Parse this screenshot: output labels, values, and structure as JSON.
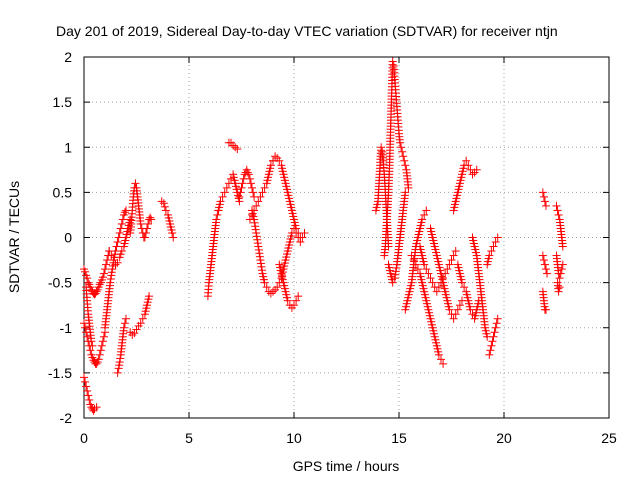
{
  "chart_data": {
    "type": "scatter",
    "title": "Day 201 of 2019, Sidereal Day-to-day VTEC variation (SDTVAR) for receiver ntjn",
    "xlabel": "GPS time / hours",
    "ylabel": "SDTVAR / TECUs",
    "xlim": [
      0,
      25
    ],
    "ylim": [
      -2,
      2
    ],
    "xticks": [
      0,
      5,
      10,
      15,
      20,
      25
    ],
    "xtick_labels": [
      "0",
      "5",
      "10",
      "15",
      "20",
      "25"
    ],
    "yticks": [
      -2,
      -1.5,
      -1,
      -0.5,
      0,
      0.5,
      1,
      1.5,
      2
    ],
    "ytick_labels": [
      "-2",
      "-1.5",
      "-1",
      "-0.5",
      "0",
      "0.5",
      "1",
      "1.5",
      "2"
    ],
    "grid": true,
    "marker": "+",
    "color": "#ff0000",
    "segments": [
      {
        "x": [
          0.0,
          0.05,
          0.1,
          0.15,
          0.2,
          0.25,
          0.3,
          0.35,
          0.4,
          0.45,
          0.5,
          0.6
        ],
        "y": [
          -1.55,
          -1.6,
          -1.65,
          -1.7,
          -1.75,
          -1.8,
          -1.85,
          -1.88,
          -1.9,
          -1.92,
          -1.9,
          -1.88
        ]
      },
      {
        "x": [
          0.0,
          0.05,
          0.1,
          0.15,
          0.2,
          0.25,
          0.3,
          0.35,
          0.4,
          0.45,
          0.5,
          0.55,
          0.6,
          0.65,
          0.7,
          0.75,
          0.8,
          0.85,
          0.9,
          0.95,
          1.0
        ],
        "y": [
          -0.95,
          -1.0,
          -1.05,
          -1.1,
          -1.15,
          -1.2,
          -1.25,
          -1.3,
          -1.33,
          -1.36,
          -1.38,
          -1.4,
          -1.4,
          -1.38,
          -1.35,
          -1.3,
          -1.25,
          -1.2,
          -1.15,
          -1.1,
          -1.05
        ]
      },
      {
        "x": [
          1.0,
          1.05,
          1.1,
          1.15,
          1.2,
          1.25,
          1.3,
          1.35,
          1.4,
          1.45,
          1.5,
          1.55,
          1.6,
          1.65,
          1.7,
          1.75,
          1.8,
          1.85,
          1.9,
          1.95,
          2.0
        ],
        "y": [
          -1.0,
          -0.9,
          -0.8,
          -0.7,
          -0.6,
          -0.5,
          -0.42,
          -0.35,
          -0.28,
          -0.22,
          -0.15,
          -0.1,
          -0.05,
          0.0,
          0.05,
          0.1,
          0.15,
          0.2,
          0.25,
          0.28,
          0.3
        ]
      },
      {
        "x": [
          0.0,
          0.05,
          0.1,
          0.15,
          0.2,
          0.25,
          0.3,
          0.35,
          0.4,
          0.45,
          0.5,
          0.55,
          0.6,
          0.65,
          0.7,
          0.75,
          0.8,
          0.85,
          0.9,
          0.95,
          1.0,
          1.05,
          1.1,
          1.15,
          1.2
        ],
        "y": [
          -0.35,
          -0.38,
          -0.42,
          -0.45,
          -0.5,
          -0.52,
          -0.55,
          -0.58,
          -0.6,
          -0.62,
          -0.63,
          -0.62,
          -0.6,
          -0.58,
          -0.55,
          -0.52,
          -0.5,
          -0.47,
          -0.44,
          -0.4,
          -0.35,
          -0.3,
          -0.25,
          -0.2,
          -0.15
        ]
      },
      {
        "x": [
          1.2,
          1.3,
          1.4,
          1.5,
          1.6,
          1.7,
          1.8,
          1.9,
          2.0,
          2.1,
          2.2
        ],
        "y": [
          -0.15,
          -0.2,
          -0.25,
          -0.3,
          -0.28,
          -0.22,
          -0.15,
          -0.1,
          0.0,
          0.1,
          0.2
        ]
      },
      {
        "x": [
          0.1,
          0.15,
          0.2,
          0.25,
          0.3,
          0.35,
          0.4
        ],
        "y": [
          -0.55,
          -0.7,
          -0.85,
          -0.95,
          -1.05,
          -1.15,
          -1.2
        ]
      },
      {
        "x": [
          1.6,
          1.65,
          1.7,
          1.75,
          1.8,
          1.85,
          1.9,
          1.95,
          2.0
        ],
        "y": [
          -1.5,
          -1.45,
          -1.38,
          -1.3,
          -1.2,
          -1.1,
          -1.0,
          -0.95,
          -0.9
        ]
      },
      {
        "x": [
          2.2,
          2.3,
          2.4,
          2.5,
          2.6,
          2.7,
          2.8,
          2.9,
          3.0,
          3.1
        ],
        "y": [
          -1.05,
          -1.08,
          -1.06,
          -1.02,
          -0.98,
          -0.95,
          -0.9,
          -0.85,
          -0.75,
          -0.65
        ]
      },
      {
        "x": [
          2.2,
          2.25,
          2.3,
          2.35,
          2.4,
          2.45,
          2.5,
          2.55,
          2.6,
          2.65,
          2.7,
          2.75,
          2.8,
          2.85,
          2.9,
          2.95,
          3.0,
          3.05,
          3.1,
          3.15,
          3.2
        ],
        "y": [
          0.05,
          0.15,
          0.3,
          0.45,
          0.55,
          0.6,
          0.55,
          0.45,
          0.35,
          0.25,
          0.15,
          0.1,
          0.05,
          0.0,
          0.0,
          0.05,
          0.1,
          0.15,
          0.2,
          0.22,
          0.2
        ]
      },
      {
        "x": [
          3.7,
          3.8,
          3.9,
          4.0,
          4.1,
          4.2,
          4.25
        ],
        "y": [
          0.4,
          0.38,
          0.3,
          0.25,
          0.15,
          0.05,
          0.0
        ]
      },
      {
        "x": [
          5.9,
          5.95,
          6.0,
          6.05,
          6.1,
          6.15,
          6.2,
          6.25,
          6.3,
          6.35,
          6.4
        ],
        "y": [
          -0.65,
          -0.5,
          -0.4,
          -0.3,
          -0.2,
          -0.1,
          0.0,
          0.1,
          0.2,
          0.25,
          0.3
        ]
      },
      {
        "x": [
          6.4,
          6.5,
          6.6,
          6.7,
          6.8,
          6.9,
          7.0,
          7.1,
          7.2,
          7.3,
          7.4
        ],
        "y": [
          0.3,
          0.4,
          0.45,
          0.5,
          0.55,
          0.6,
          0.65,
          0.7,
          0.6,
          0.5,
          0.4
        ]
      },
      {
        "x": [
          6.9,
          7.0,
          7.1,
          7.2,
          7.3
        ],
        "y": [
          1.05,
          1.05,
          1.02,
          1.0,
          0.98
        ]
      },
      {
        "x": [
          7.4,
          7.45,
          7.5,
          7.55,
          7.6,
          7.65,
          7.7,
          7.75,
          7.8,
          7.85,
          7.9,
          7.95,
          8.0,
          8.05,
          8.1
        ],
        "y": [
          0.45,
          0.5,
          0.55,
          0.6,
          0.65,
          0.7,
          0.72,
          0.75,
          0.72,
          0.7,
          0.65,
          0.6,
          0.55,
          0.5,
          0.45
        ]
      },
      {
        "x": [
          7.9,
          8.0,
          8.1,
          8.2,
          8.3,
          8.4,
          8.5,
          8.6,
          8.7,
          8.8,
          8.9,
          9.0
        ],
        "y": [
          0.2,
          0.25,
          0.3,
          0.35,
          0.4,
          0.45,
          0.5,
          0.55,
          0.6,
          0.7,
          0.8,
          0.85
        ]
      },
      {
        "x": [
          8.0,
          8.1,
          8.2,
          8.3,
          8.4,
          8.5,
          8.6,
          8.7,
          8.8,
          8.9,
          9.0,
          9.1,
          9.2,
          9.3,
          9.4,
          9.5,
          9.6,
          9.7,
          9.8,
          9.9,
          10.0,
          10.1,
          10.2,
          10.3,
          10.4,
          10.5
        ],
        "y": [
          0.3,
          0.2,
          0.05,
          -0.1,
          -0.25,
          -0.4,
          -0.5,
          -0.55,
          -0.6,
          -0.62,
          -0.6,
          -0.58,
          -0.55,
          -0.5,
          -0.45,
          -0.35,
          -0.25,
          -0.15,
          -0.05,
          0.05,
          0.1,
          0.05,
          0.0,
          -0.05,
          0.0,
          0.05
        ]
      },
      {
        "x": [
          9.0,
          9.1,
          9.2,
          9.3,
          9.4,
          9.5,
          9.6,
          9.7,
          9.8,
          9.9,
          10.0,
          10.1,
          10.2,
          10.3
        ],
        "y": [
          0.85,
          0.9,
          0.88,
          0.85,
          0.8,
          0.7,
          0.6,
          0.5,
          0.4,
          0.3,
          0.2,
          0.1,
          0.05,
          0.0
        ]
      },
      {
        "x": [
          9.3,
          9.4,
          9.5,
          9.6,
          9.7,
          9.8,
          9.9,
          10.0,
          10.1,
          10.2
        ],
        "y": [
          -0.3,
          -0.4,
          -0.5,
          -0.6,
          -0.7,
          -0.75,
          -0.78,
          -0.75,
          -0.7,
          -0.65
        ]
      },
      {
        "x": [
          13.9,
          14.0,
          14.05,
          14.1,
          14.15,
          14.2,
          14.25,
          14.3,
          14.35,
          14.4,
          14.45,
          14.5
        ],
        "y": [
          0.3,
          0.4,
          0.6,
          0.8,
          1.0,
          0.95,
          0.85,
          0.7,
          0.5,
          0.3,
          0.1,
          -0.1
        ]
      },
      {
        "x": [
          14.3,
          14.35,
          14.4,
          14.45,
          14.5,
          14.55,
          14.6,
          14.65,
          14.7,
          14.75,
          14.8,
          14.85,
          14.9,
          14.95,
          15.0,
          15.05,
          15.1,
          15.15,
          15.2,
          15.25,
          15.3,
          15.35,
          15.4,
          15.45
        ],
        "y": [
          -0.2,
          -0.1,
          0.1,
          0.3,
          0.5,
          0.8,
          1.2,
          1.6,
          1.95,
          1.9,
          1.75,
          1.6,
          1.45,
          1.3,
          1.15,
          1.05,
          1.0,
          0.95,
          0.9,
          0.85,
          0.8,
          0.75,
          0.65,
          0.55
        ]
      },
      {
        "x": [
          14.5,
          14.6,
          14.7,
          14.8,
          14.9,
          15.0,
          15.1,
          15.2,
          15.3
        ],
        "y": [
          -0.3,
          -0.4,
          -0.5,
          -0.45,
          -0.3,
          -0.1,
          0.1,
          0.3,
          0.5
        ]
      },
      {
        "x": [
          15.3,
          15.4,
          15.5,
          15.6,
          15.7,
          15.8,
          15.9,
          16.0,
          16.1,
          16.2,
          16.3
        ],
        "y": [
          -0.8,
          -0.7,
          -0.6,
          -0.5,
          -0.3,
          -0.1,
          0.0,
          0.1,
          0.2,
          0.25,
          0.3
        ]
      },
      {
        "x": [
          15.6,
          15.7,
          15.8,
          15.9,
          16.0,
          16.1,
          16.2,
          16.3,
          16.4,
          16.5,
          16.6,
          16.7,
          16.8,
          16.9,
          17.0,
          17.1
        ],
        "y": [
          -0.2,
          -0.25,
          -0.3,
          -0.35,
          -0.4,
          -0.5,
          -0.6,
          -0.7,
          -0.8,
          -0.9,
          -1.0,
          -1.1,
          -1.2,
          -1.3,
          -1.35,
          -1.4
        ]
      },
      {
        "x": [
          16.0,
          16.1,
          16.2,
          16.3,
          16.4,
          16.5,
          16.6,
          16.7,
          16.8,
          16.9,
          17.0,
          17.1,
          17.2,
          17.3,
          17.4,
          17.5,
          17.6,
          17.7
        ],
        "y": [
          -0.1,
          -0.2,
          -0.3,
          -0.35,
          -0.4,
          -0.45,
          -0.5,
          -0.55,
          -0.6,
          -0.55,
          -0.5,
          -0.45,
          -0.4,
          -0.35,
          -0.3,
          -0.25,
          -0.2,
          -0.15
        ]
      },
      {
        "x": [
          16.5,
          16.6,
          16.7,
          16.8,
          16.9,
          17.0,
          17.1,
          17.2,
          17.3,
          17.4,
          17.5,
          17.6,
          17.7,
          17.8,
          17.9,
          18.0
        ],
        "y": [
          0.1,
          0.0,
          -0.1,
          -0.2,
          -0.3,
          -0.4,
          -0.5,
          -0.6,
          -0.7,
          -0.8,
          -0.85,
          -0.9,
          -0.85,
          -0.8,
          -0.75,
          -0.7
        ]
      },
      {
        "x": [
          17.6,
          17.7,
          17.8,
          17.9,
          18.0,
          18.1,
          18.2,
          18.3,
          18.4,
          18.5,
          18.6,
          18.7
        ],
        "y": [
          0.3,
          0.4,
          0.5,
          0.6,
          0.7,
          0.8,
          0.85,
          0.8,
          0.75,
          0.7,
          0.72,
          0.75
        ]
      },
      {
        "x": [
          17.8,
          17.9,
          18.0,
          18.1,
          18.2,
          18.3,
          18.4,
          18.5,
          18.6,
          18.7,
          18.8
        ],
        "y": [
          -0.3,
          -0.4,
          -0.5,
          -0.55,
          -0.6,
          -0.7,
          -0.8,
          -0.85,
          -0.9,
          -0.8,
          -0.7
        ]
      },
      {
        "x": [
          18.5,
          18.6,
          18.7,
          18.8,
          18.9,
          19.0,
          19.1,
          19.2
        ],
        "y": [
          0.0,
          -0.1,
          -0.2,
          -0.4,
          -0.6,
          -0.8,
          -1.0,
          -1.1
        ]
      },
      {
        "x": [
          19.3,
          19.35,
          19.4,
          19.45,
          19.5,
          19.55,
          19.6,
          19.65,
          19.7
        ],
        "y": [
          -1.3,
          -1.25,
          -1.2,
          -1.15,
          -1.1,
          -1.05,
          -1.0,
          -0.95,
          -0.9
        ]
      },
      {
        "x": [
          19.2,
          19.3,
          19.4,
          19.5,
          19.6,
          19.7
        ],
        "y": [
          -0.3,
          -0.2,
          -0.15,
          -0.1,
          -0.05,
          0.0
        ]
      },
      {
        "x": [
          21.85,
          21.9,
          21.95,
          22.0
        ],
        "y": [
          0.5,
          0.45,
          0.4,
          0.35
        ]
      },
      {
        "x": [
          21.85,
          21.9,
          21.95,
          22.0,
          22.05
        ],
        "y": [
          -0.2,
          -0.25,
          -0.3,
          -0.35,
          -0.4
        ]
      },
      {
        "x": [
          21.85,
          21.9,
          21.95,
          22.0
        ],
        "y": [
          -0.6,
          -0.7,
          -0.8,
          -0.8
        ]
      },
      {
        "x": [
          22.5,
          22.55,
          22.6,
          22.65,
          22.7,
          22.75,
          22.8
        ],
        "y": [
          0.35,
          0.3,
          0.25,
          0.2,
          0.1,
          0.0,
          -0.1
        ]
      },
      {
        "x": [
          22.5,
          22.55,
          22.6,
          22.65,
          22.7,
          22.75,
          22.8
        ],
        "y": [
          -0.2,
          -0.3,
          -0.4,
          -0.45,
          -0.4,
          -0.35,
          -0.3
        ]
      },
      {
        "x": [
          22.55,
          22.6,
          22.65
        ],
        "y": [
          -0.5,
          -0.6,
          -0.55
        ]
      }
    ]
  }
}
